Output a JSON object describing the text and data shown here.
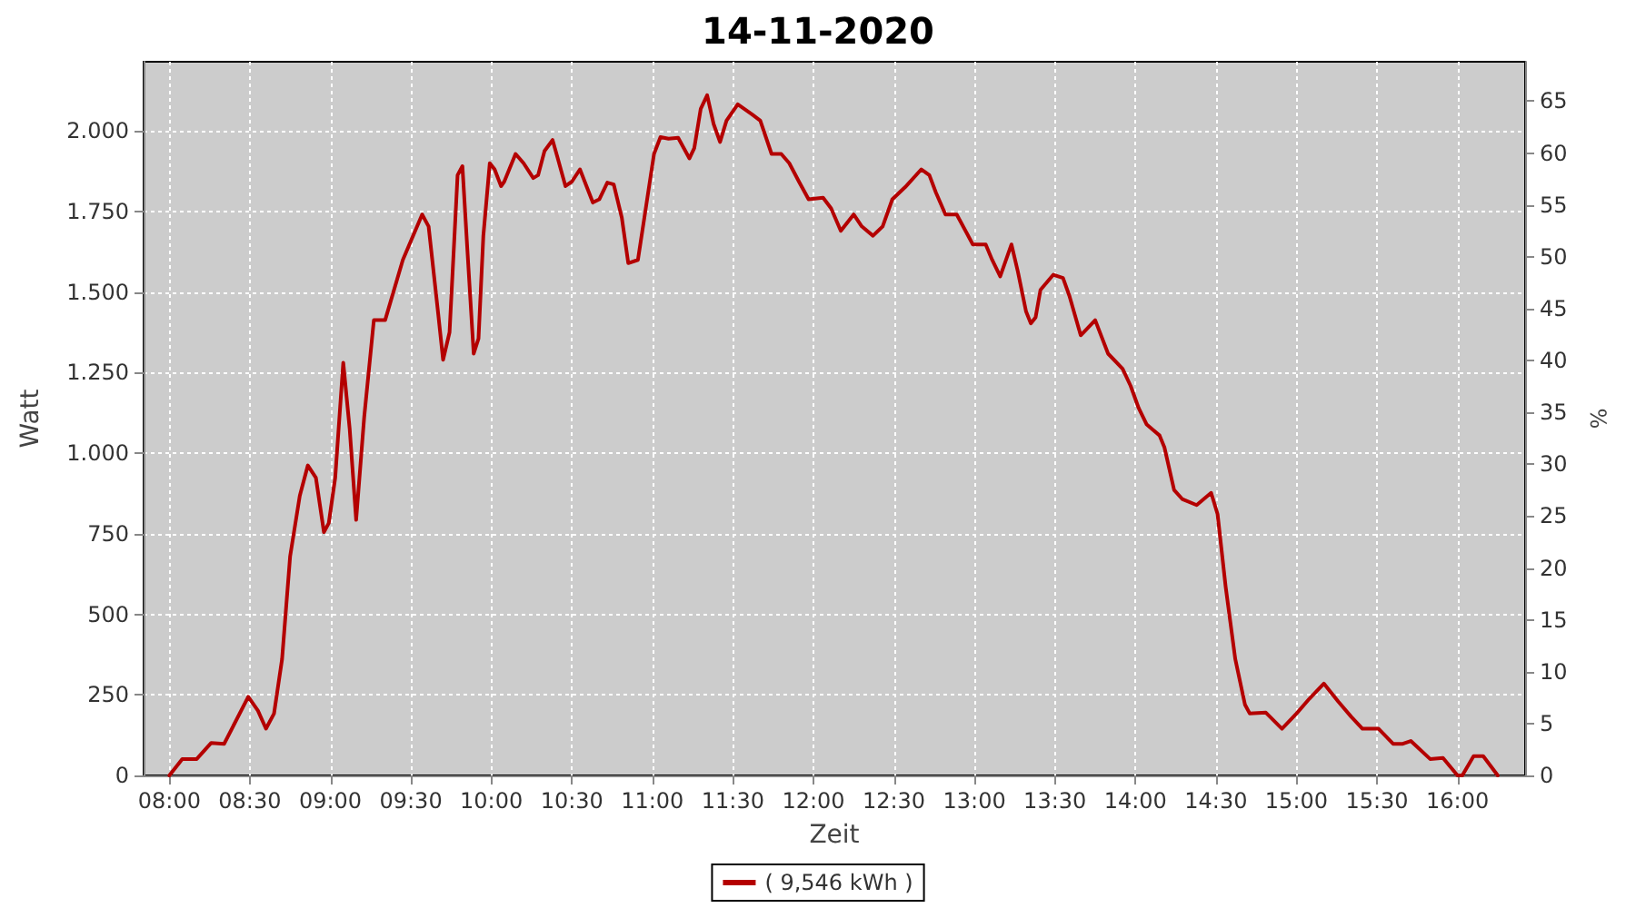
{
  "chart_data": {
    "type": "line",
    "title": "14-11-2020",
    "xlabel": "Zeit",
    "ylabel": "Watt",
    "y2label": "%",
    "xlim": [
      7.84,
      16.42
    ],
    "xticks": [
      {
        "value": 8,
        "label": "08:00"
      },
      {
        "value": 8.5,
        "label": "08:30"
      },
      {
        "value": 9,
        "label": "09:00"
      },
      {
        "value": 9.5,
        "label": "09:30"
      },
      {
        "value": 10,
        "label": "10:00"
      },
      {
        "value": 10.5,
        "label": "10:30"
      },
      {
        "value": 11,
        "label": "11:00"
      },
      {
        "value": 11.5,
        "label": "11:30"
      },
      {
        "value": 12,
        "label": "12:00"
      },
      {
        "value": 12.5,
        "label": "12:30"
      },
      {
        "value": 13,
        "label": "13:00"
      },
      {
        "value": 13.5,
        "label": "13:30"
      },
      {
        "value": 14,
        "label": "14:00"
      },
      {
        "value": 14.5,
        "label": "14:30"
      },
      {
        "value": 15,
        "label": "15:00"
      },
      {
        "value": 15.5,
        "label": "15:30"
      },
      {
        "value": 16,
        "label": "16:00"
      }
    ],
    "ylim": [
      0,
      2215
    ],
    "yticks": [
      0,
      250,
      500,
      750,
      {
        "value": 1000,
        "label": "1.000"
      },
      {
        "value": 1250,
        "label": "1.250"
      },
      {
        "value": 1500,
        "label": "1.500"
      },
      {
        "value": 1750,
        "label": "1.750"
      },
      {
        "value": 2000,
        "label": "2.000"
      }
    ],
    "y2lim": [
      0,
      68.8
    ],
    "y2ticks": [
      0,
      5,
      10,
      15,
      20,
      25,
      30,
      35,
      40,
      45,
      50,
      55,
      60,
      65
    ],
    "grid": true,
    "legend": "bottom",
    "marker": "none",
    "line_style": "solid",
    "series": [
      {
        "name": "( 9,546 kWh )",
        "color": "#b40000",
        "x": [
          8.0,
          8.08,
          8.17,
          8.26,
          8.34,
          8.49,
          8.55,
          8.6,
          8.65,
          8.7,
          8.75,
          8.81,
          8.86,
          8.91,
          8.96,
          8.99,
          9.03,
          9.08,
          9.12,
          9.16,
          9.21,
          9.27,
          9.34,
          9.45,
          9.57,
          9.61,
          9.67,
          9.7,
          9.74,
          9.79,
          9.82,
          9.85,
          9.89,
          9.92,
          9.95,
          9.99,
          10.02,
          10.06,
          10.08,
          10.15,
          10.2,
          10.26,
          10.29,
          10.33,
          10.38,
          10.41,
          10.46,
          10.5,
          10.55,
          10.63,
          10.67,
          10.72,
          10.76,
          10.81,
          10.85,
          10.91,
          10.95,
          11.01,
          11.05,
          11.1,
          11.16,
          11.23,
          11.26,
          11.3,
          11.34,
          11.38,
          11.42,
          11.46,
          11.53,
          11.62,
          11.67,
          11.74,
          11.8,
          11.85,
          11.91,
          11.97,
          12.06,
          12.11,
          12.17,
          12.25,
          12.3,
          12.37,
          12.43,
          12.49,
          12.57,
          12.67,
          12.72,
          12.76,
          12.82,
          12.89,
          12.99,
          13.07,
          13.11,
          13.16,
          13.23,
          13.27,
          13.32,
          13.35,
          13.38,
          13.41,
          13.49,
          13.55,
          13.59,
          13.66,
          13.75,
          13.83,
          13.92,
          13.97,
          14.02,
          14.07,
          14.15,
          14.18,
          14.24,
          14.29,
          14.38,
          14.47,
          14.51,
          14.56,
          14.62,
          14.68,
          14.71,
          14.81,
          14.91,
          15.0,
          15.08,
          15.17,
          15.26,
          15.34,
          15.41,
          15.51,
          15.6,
          15.66,
          15.71,
          15.83,
          15.91,
          16.0,
          16.03,
          16.1,
          16.16,
          16.25
        ],
        "values": [
          0,
          51,
          51,
          101,
          98,
          244,
          201,
          145,
          192,
          361,
          680,
          868,
          962,
          924,
          755,
          783,
          924,
          1281,
          1075,
          793,
          1112,
          1413,
          1413,
          1600,
          1741,
          1704,
          1431,
          1290,
          1375,
          1863,
          1891,
          1638,
          1309,
          1356,
          1675,
          1900,
          1881,
          1829,
          1843,
          1929,
          1900,
          1854,
          1863,
          1938,
          1972,
          1919,
          1829,
          1843,
          1881,
          1778,
          1788,
          1840,
          1834,
          1731,
          1590,
          1600,
          1731,
          1929,
          1981,
          1976,
          1979,
          1915,
          1947,
          2069,
          2111,
          2022,
          1966,
          2032,
          2083,
          2051,
          2032,
          1929,
          1929,
          1900,
          1843,
          1788,
          1793,
          1760,
          1690,
          1741,
          1704,
          1675,
          1704,
          1788,
          1826,
          1881,
          1863,
          1810,
          1741,
          1741,
          1648,
          1648,
          1600,
          1549,
          1648,
          1563,
          1441,
          1403,
          1422,
          1507,
          1554,
          1544,
          1488,
          1366,
          1413,
          1309,
          1262,
          1209,
          1140,
          1089,
          1055,
          1018,
          886,
          858,
          839,
          877,
          811,
          586,
          361,
          220,
          192,
          195,
          145,
          192,
          238,
          285,
          229,
          182,
          145,
          145,
          98,
          98,
          107,
          51,
          54,
          0,
          0,
          60,
          60,
          0
        ]
      }
    ]
  }
}
